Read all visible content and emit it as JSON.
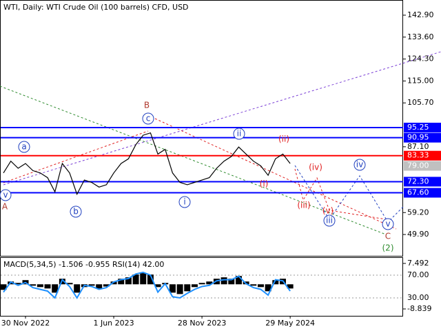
{
  "chart_data": [
    {
      "type": "line",
      "title": "WTI, Daily:  WTI Crude Oil (100 barrels) CFD, USD",
      "categories": [
        null,
        null,
        null,
        "30 Nov 2022",
        null,
        null,
        null,
        null,
        null,
        null,
        null,
        null,
        null,
        null,
        null,
        "1 Jun 2023",
        null,
        null,
        null,
        null,
        null,
        null,
        null,
        null,
        null,
        null,
        null,
        "28 Nov 2023",
        null,
        null,
        null,
        null,
        null,
        null,
        null,
        null,
        null,
        null,
        null,
        "29 May 2024"
      ],
      "series": [
        {
          "color": "#000000",
          "values": [
            76,
            81,
            78,
            80,
            77,
            76,
            74,
            68,
            80,
            76,
            67,
            73,
            72,
            70,
            71,
            76,
            80,
            82,
            88,
            92,
            93,
            84,
            86,
            76,
            72,
            71,
            72,
            73,
            74,
            78,
            81,
            83,
            87,
            84,
            81,
            79,
            75,
            82,
            84,
            80
          ]
        }
      ],
      "ylim": [
        41.15,
        149.33
      ],
      "yticks": [
        {
          "value": 142.9,
          "label": "142.90"
        },
        {
          "value": 133.6,
          "label": "133.60"
        },
        {
          "value": 124.3,
          "label": "124.30"
        },
        {
          "value": 115,
          "label": "115.00"
        },
        {
          "value": 105.7,
          "label": "105.70"
        },
        {
          "value": 87.1,
          "label": "87.10"
        },
        {
          "value": 59.2,
          "label": "59.20"
        },
        {
          "value": 49.9,
          "label": "49.90"
        }
      ],
      "levels": [
        {
          "value": 95.25,
          "color": "#0000ff"
        },
        {
          "value": 90.95,
          "color": "#0000ff"
        },
        {
          "value": 83.33,
          "color": "#ff0000"
        },
        {
          "value": 79,
          "label": "79.00",
          "color": "#c0c0c0"
        },
        {
          "value": 72.3,
          "label": "72.30",
          "color": "#0000ff"
        },
        {
          "value": 67.6,
          "label": "67.60",
          "color": "#0000ff"
        }
      ],
      "wave_labels": [
        {
          "text": "A",
          "color": "#b03a2e",
          "circled": false
        },
        {
          "text": "v",
          "color": "#1f3fbf",
          "circled": true
        },
        {
          "text": "a",
          "color": "#1f3fbf",
          "circled": true
        },
        {
          "text": "b",
          "color": "#1f3fbf",
          "circled": true
        },
        {
          "text": "B",
          "color": "#b03a2e",
          "circled": false
        },
        {
          "text": "c",
          "color": "#1f3fbf",
          "circled": true
        },
        {
          "text": "i",
          "color": "#1f3fbf",
          "circled": true
        },
        {
          "text": "ii",
          "color": "#1f3fbf",
          "circled": true
        },
        {
          "text": "(ii)",
          "color": "#e02020",
          "circled": false
        },
        {
          "text": "(i)",
          "color": "#e02020",
          "circled": false
        },
        {
          "text": "(iii)",
          "color": "#e02020",
          "circled": false
        },
        {
          "text": "(iv)",
          "color": "#e02020",
          "circled": false
        },
        {
          "text": "(v)",
          "color": "#e02020",
          "circled": false
        },
        {
          "text": "iii",
          "color": "#1f3fbf",
          "circled": true
        },
        {
          "text": "iv",
          "color": "#1f3fbf",
          "circled": true
        },
        {
          "text": "v",
          "color": "#1f3fbf",
          "circled": true
        },
        {
          "text": "C",
          "color": "#b03a2e",
          "circled": false
        },
        {
          "text": "(2)",
          "color": "#2e8b2e",
          "circled": false
        }
      ]
    },
    {
      "type": "indicator",
      "title": "MACD(5,34,5) -1.506 -0.955 RSI(14) 42.00",
      "series": [
        {
          "type": "bar",
          "color": "#000000",
          "values": [
            -2,
            1,
            0.5,
            1.5,
            -0.5,
            -1,
            -1.5,
            -3,
            2,
            0.5,
            -3,
            -1,
            -0.5,
            -1.5,
            -0.8,
            1,
            2,
            2.5,
            3.5,
            4,
            3.5,
            -1,
            0.5,
            -3,
            -3.5,
            -2.5,
            -1,
            0.5,
            1,
            2,
            2.5,
            2,
            3,
            1,
            -0.5,
            -1,
            -2.5,
            1.5,
            2,
            -1.5
          ]
        },
        {
          "type": "line",
          "color": "#1e90ff",
          "axis": "y2",
          "values": [
            40,
            58,
            52,
            57,
            48,
            45,
            42,
            30,
            62,
            50,
            30,
            52,
            50,
            45,
            48,
            58,
            62,
            64,
            72,
            75,
            70,
            40,
            55,
            32,
            30,
            38,
            45,
            50,
            52,
            60,
            62,
            62,
            68,
            55,
            48,
            45,
            35,
            62,
            60,
            42
          ]
        }
      ],
      "ylim": [
        -8.839,
        7.492
      ],
      "yticks": [
        7.492,
        -8.839
      ],
      "y2lim": [
        10.6,
        90.6
      ],
      "y2ticks": [
        {
          "value": 70,
          "label": "70.00"
        },
        {
          "value": 30,
          "label": "30.00"
        }
      ]
    }
  ]
}
